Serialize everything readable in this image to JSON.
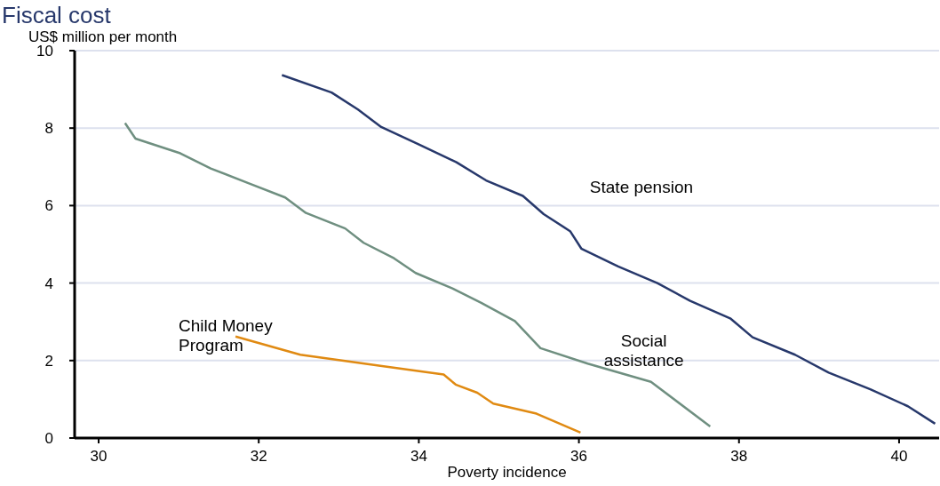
{
  "chart_data": {
    "type": "line",
    "title": "Fiscal cost",
    "ylabel": "US$ million per month",
    "xlabel": "Poverty incidence",
    "xlim": [
      29.7,
      40.5
    ],
    "xticks": [
      30,
      32,
      34,
      36,
      38,
      40
    ],
    "ylim": [
      0,
      10
    ],
    "yticks": [
      0,
      2,
      4,
      6,
      8,
      10
    ],
    "grid": "y",
    "legend": false,
    "marker": "none",
    "line_style": "solid",
    "series": [
      {
        "name": "State pension",
        "color": "#27386b",
        "x": [
          32.29,
          32.91,
          33.24,
          33.53,
          33.99,
          34.47,
          34.84,
          35.3,
          35.56,
          35.89,
          36.03,
          36.49,
          36.98,
          37.39,
          37.89,
          38.17,
          38.7,
          39.12,
          39.64,
          40.11,
          40.45
        ],
        "values": [
          9.37,
          8.92,
          8.48,
          8.03,
          7.59,
          7.12,
          6.65,
          6.25,
          5.78,
          5.34,
          4.89,
          4.43,
          4.0,
          3.54,
          3.09,
          2.6,
          2.15,
          1.69,
          1.26,
          0.82,
          0.37
        ]
      },
      {
        "name": "Social assistance",
        "color": "#6f8f80",
        "x": [
          30.33,
          30.46,
          31.02,
          31.4,
          31.87,
          32.33,
          32.59,
          33.08,
          33.31,
          33.69,
          33.96,
          34.42,
          34.78,
          35.2,
          35.52,
          36.11,
          36.9,
          37.64
        ],
        "values": [
          8.13,
          7.73,
          7.35,
          6.96,
          6.58,
          6.21,
          5.81,
          5.41,
          5.04,
          4.64,
          4.26,
          3.86,
          3.49,
          3.02,
          2.32,
          1.92,
          1.45,
          0.3
        ]
      },
      {
        "name": "Child Money Program",
        "color": "#e08a12",
        "x": [
          31.71,
          32.52,
          33.56,
          34.31,
          34.46,
          34.73,
          34.93,
          35.47,
          36.02
        ],
        "values": [
          2.62,
          2.15,
          1.85,
          1.64,
          1.38,
          1.17,
          0.89,
          0.63,
          0.14
        ]
      }
    ]
  }
}
